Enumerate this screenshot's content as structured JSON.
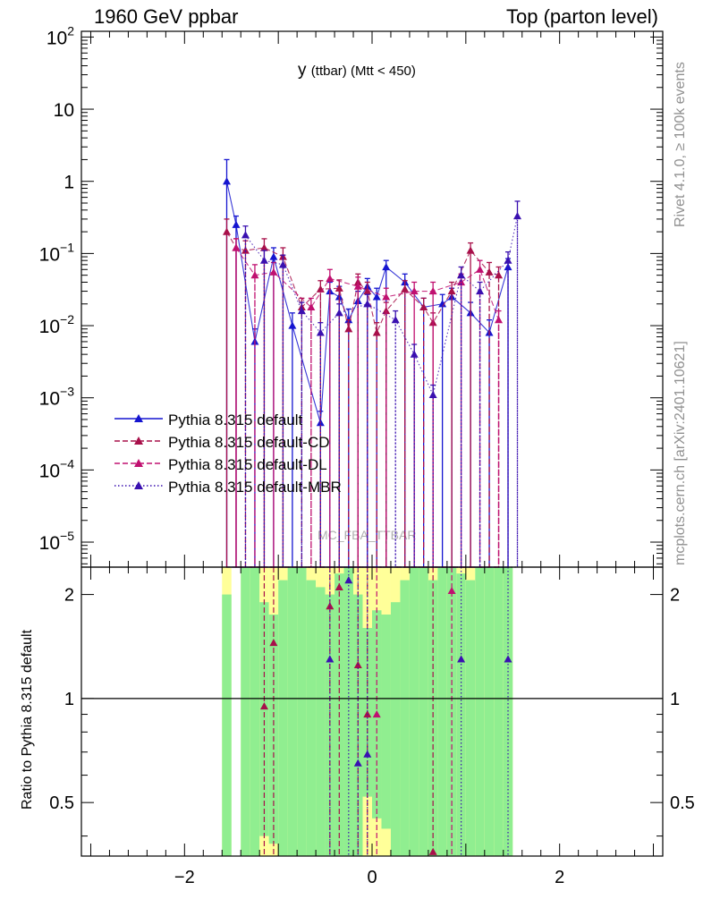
{
  "header": {
    "left": "1960 GeV ppbar",
    "right": "Top (parton level)"
  },
  "side_labels": {
    "rivet": "Rivet 4.1.0, ≥ 100k events",
    "mcplots": "mcplots.cern.ch [arXiv:2401.10621]"
  },
  "watermark": "MC_FBA_TTBAR",
  "colors": {
    "default": "#1515d0",
    "cd": "#a8104a",
    "dl": "#c01070",
    "mbr": "#3a10b0",
    "band_green": "#90ee90",
    "band_yellow": "#ffff99"
  },
  "chart_data": [
    {
      "panel": "main",
      "type": "line",
      "title": "y",
      "title_suffix": "(ttbar) (Mtt < 450)",
      "xlabel": "",
      "ylabel": "",
      "xlim": [
        -3.1,
        3.1
      ],
      "ylim": [
        4.5e-06,
        120
      ],
      "yscale": "log",
      "yticks": [
        {
          "v": 100.0,
          "base": "10",
          "exp": "2"
        },
        {
          "v": 10,
          "base": "10",
          "exp": ""
        },
        {
          "v": 1,
          "base": "1",
          "exp": ""
        },
        {
          "v": 0.1,
          "base": "10",
          "exp": "−1"
        },
        {
          "v": 0.01,
          "base": "10",
          "exp": "−2"
        },
        {
          "v": 0.001,
          "base": "10",
          "exp": "−3"
        },
        {
          "v": 0.0001,
          "base": "10",
          "exp": "−4"
        },
        {
          "v": 1e-05,
          "base": "10",
          "exp": "−5"
        }
      ],
      "legend": [
        {
          "label": "Pythia 8.315 default",
          "style": "solid",
          "color": "#1515d0"
        },
        {
          "label": "Pythia 8.315 default-CD",
          "style": "dashed",
          "color": "#a8104a"
        },
        {
          "label": "Pythia 8.315 default-DL",
          "style": "dashed",
          "color": "#c01070"
        },
        {
          "label": "Pythia 8.315 default-MBR",
          "style": "dotted",
          "color": "#3a10b0"
        }
      ],
      "series": [
        {
          "name": "Pythia 8.315 default",
          "color": "#1515d0",
          "style": "solid",
          "x": [
            -1.55,
            -1.45,
            -1.25,
            -1.05,
            -0.85,
            -0.55,
            -0.45,
            -0.35,
            -0.25,
            -0.15,
            -0.05,
            0.05,
            0.15,
            0.35,
            0.55,
            0.75,
            0.85,
            1.05,
            1.25,
            1.45
          ],
          "y": [
            1.0,
            0.25,
            0.006,
            0.09,
            0.01,
            0.00045,
            0.03,
            0.025,
            0.012,
            0.022,
            0.035,
            0.025,
            0.065,
            0.04,
            0.018,
            0.02,
            0.025,
            0.015,
            0.008,
            0.065
          ],
          "err": [
            1.0,
            0.08,
            0.003,
            0.03,
            0.005,
            0.0002,
            0.01,
            0.01,
            0.005,
            0.008,
            0.01,
            0.008,
            0.015,
            0.012,
            0.006,
            0.007,
            0.008,
            0.006,
            0.004,
            0.02
          ]
        },
        {
          "name": "Pythia 8.315 default-CD",
          "color": "#a8104a",
          "style": "dashed",
          "x": [
            -1.55,
            -1.45,
            -1.35,
            -1.15,
            -0.95,
            -0.75,
            -0.55,
            -0.35,
            -0.25,
            -0.15,
            -0.05,
            0.05,
            0.15,
            0.35,
            0.55,
            0.65,
            0.85,
            1.05,
            1.25,
            1.35
          ],
          "y": [
            0.2,
            0.12,
            0.11,
            0.12,
            0.09,
            0.018,
            0.032,
            0.033,
            0.009,
            0.04,
            0.03,
            0.008,
            0.016,
            0.032,
            0.018,
            0.011,
            0.03,
            0.11,
            0.055,
            0.05
          ],
          "err": [
            0.1,
            0.04,
            0.04,
            0.04,
            0.03,
            0.006,
            0.01,
            0.01,
            0.003,
            0.012,
            0.01,
            0.003,
            0.005,
            0.01,
            0.006,
            0.004,
            0.01,
            0.03,
            0.02,
            0.015
          ]
        },
        {
          "name": "Pythia 8.315 default-DL",
          "color": "#c01070",
          "style": "dashed",
          "x": [
            -1.45,
            -1.25,
            -1.05,
            -0.65,
            -0.45,
            -0.15,
            0.15,
            0.45,
            0.65,
            0.95,
            1.15,
            1.35
          ],
          "y": [
            0.12,
            0.05,
            0.055,
            0.018,
            0.045,
            0.035,
            0.025,
            0.03,
            0.03,
            0.04,
            0.06,
            0.012
          ],
          "err": [
            0.04,
            0.02,
            0.02,
            0.006,
            0.015,
            0.012,
            0.008,
            0.01,
            0.01,
            0.012,
            0.02,
            0.004
          ]
        },
        {
          "name": "Pythia 8.315 default-MBR",
          "color": "#3a10b0",
          "style": "dotted",
          "x": [
            -1.35,
            -1.15,
            -0.95,
            -0.75,
            -0.55,
            -0.35,
            -0.05,
            0.25,
            0.45,
            0.65,
            0.95,
            1.15,
            1.45,
            1.55
          ],
          "y": [
            0.18,
            0.08,
            0.07,
            0.016,
            0.008,
            0.015,
            0.02,
            0.012,
            0.004,
            0.0011,
            0.05,
            0.03,
            0.08,
            0.33
          ],
          "err": [
            0.06,
            0.03,
            0.025,
            0.005,
            0.003,
            0.005,
            0.007,
            0.004,
            0.0015,
            0.0004,
            0.015,
            0.01,
            0.025,
            0.2
          ]
        }
      ]
    },
    {
      "panel": "ratio",
      "type": "line",
      "ylabel": "Ratio to Pythia 8.315 default",
      "xlim": [
        -3.1,
        3.1
      ],
      "ylim": [
        0.35,
        2.4
      ],
      "yscale": "log",
      "yticks": [
        0.5,
        1,
        2
      ],
      "ytick_labels": [
        "0.5",
        "1",
        "2"
      ],
      "xticks": [
        -2,
        0,
        2
      ],
      "xtick_labels": [
        "−2",
        "0",
        "2"
      ],
      "band_bins": [
        -1.6,
        -1.5,
        -1.4,
        -1.3,
        -1.2,
        -1.1,
        -1.0,
        -0.9,
        -0.8,
        -0.7,
        -0.6,
        -0.5,
        -0.4,
        -0.3,
        -0.2,
        -0.1,
        0.0,
        0.1,
        0.2,
        0.3,
        0.4,
        0.5,
        0.6,
        0.7,
        0.8,
        0.9,
        1.0,
        1.1,
        1.2,
        1.3,
        1.4,
        1.5
      ],
      "band_green": [
        [
          0.35,
          2.0
        ],
        null,
        [
          0.35,
          2.4
        ],
        [
          0.35,
          2.4
        ],
        [
          0.4,
          1.9
        ],
        [
          0.38,
          1.75
        ],
        [
          0.35,
          2.2
        ],
        [
          0.35,
          2.4
        ],
        [
          0.35,
          2.4
        ],
        [
          0.35,
          2.2
        ],
        [
          0.35,
          2.1
        ],
        [
          0.35,
          2.0
        ],
        [
          0.35,
          2.3
        ],
        [
          0.35,
          2.4
        ],
        [
          0.35,
          2.0
        ],
        [
          0.52,
          1.6
        ],
        [
          0.45,
          1.8
        ],
        [
          0.42,
          1.75
        ],
        [
          0.35,
          1.9
        ],
        [
          0.35,
          2.2
        ],
        [
          0.35,
          2.4
        ],
        [
          0.35,
          2.4
        ],
        [
          0.35,
          2.2
        ],
        [
          0.35,
          2.4
        ],
        [
          0.35,
          2.4
        ],
        [
          0.35,
          2.3
        ],
        [
          0.35,
          2.2
        ],
        [
          0.35,
          2.4
        ],
        [
          0.35,
          2.4
        ],
        [
          0.35,
          2.4
        ],
        [
          0.35,
          2.4
        ]
      ],
      "band_yellow": [
        [
          0.35,
          2.4
        ],
        null,
        [
          0.35,
          2.4
        ],
        [
          0.35,
          2.4
        ],
        [
          0.35,
          2.4
        ],
        [
          0.35,
          2.4
        ],
        [
          0.35,
          2.4
        ],
        [
          0.35,
          2.4
        ],
        [
          0.35,
          2.4
        ],
        [
          0.35,
          2.4
        ],
        [
          0.35,
          2.4
        ],
        [
          0.35,
          2.4
        ],
        [
          0.35,
          2.4
        ],
        [
          0.35,
          2.4
        ],
        [
          0.35,
          2.4
        ],
        [
          0.35,
          2.4
        ],
        [
          0.35,
          2.4
        ],
        [
          0.35,
          2.4
        ],
        [
          0.35,
          2.4
        ],
        [
          0.35,
          2.4
        ],
        [
          0.35,
          2.4
        ],
        [
          0.35,
          2.4
        ],
        [
          0.35,
          2.4
        ],
        [
          0.35,
          2.4
        ],
        [
          0.35,
          2.4
        ],
        [
          0.35,
          2.4
        ],
        [
          0.35,
          2.4
        ],
        [
          0.35,
          2.4
        ],
        [
          0.35,
          2.4
        ],
        [
          0.35,
          2.4
        ],
        [
          0.35,
          2.4
        ]
      ],
      "series": [
        {
          "name": "default-CD / default",
          "color": "#a8104a",
          "style": "dashed",
          "x": [
            -1.15,
            -1.05,
            -0.45,
            -0.35,
            -0.15,
            -0.05,
            0.65
          ],
          "y": [
            0.95,
            1.45,
            1.85,
            2.1,
            1.25,
            0.9,
            0.36
          ]
        },
        {
          "name": "default-DL / default",
          "color": "#c01070",
          "style": "dashed",
          "x": [
            0.05,
            0.85
          ],
          "y": [
            0.9,
            2.05
          ]
        },
        {
          "name": "default-MBR / default",
          "color": "#3a10b0",
          "style": "dotted",
          "x": [
            -0.45,
            -0.25,
            -0.15,
            -0.05,
            0.95,
            1.45
          ],
          "y": [
            1.3,
            2.2,
            0.65,
            0.69,
            1.3,
            1.3
          ]
        }
      ]
    }
  ]
}
